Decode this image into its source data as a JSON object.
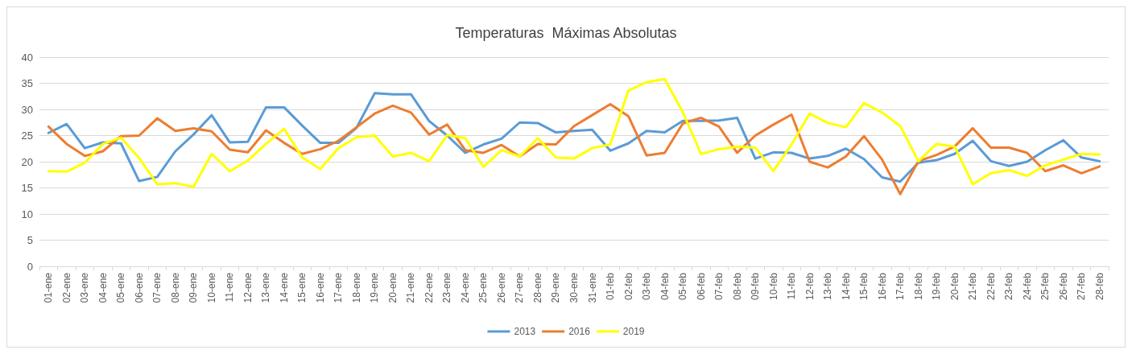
{
  "chart_data": {
    "type": "line",
    "title": "Temperaturas  Máximas Absolutas",
    "categories": [
      "01-ene",
      "02-ene",
      "03-ene",
      "04-ene",
      "05-ene",
      "06-ene",
      "07-ene",
      "08-ene",
      "09-ene",
      "10-ene",
      "11-ene",
      "12-ene",
      "13-ene",
      "14-ene",
      "15-ene",
      "16-ene",
      "17-ene",
      "18-ene",
      "19-ene",
      "20-ene",
      "21-ene",
      "22-ene",
      "23-ene",
      "24-ene",
      "25-ene",
      "26-ene",
      "27-ene",
      "28-ene",
      "29-ene",
      "30-ene",
      "31-ene",
      "01-feb",
      "02-feb",
      "03-feb",
      "04-feb",
      "05-feb",
      "06-feb",
      "07-feb",
      "08-feb",
      "09-feb",
      "10-feb",
      "11-feb",
      "12-feb",
      "13-feb",
      "14-feb",
      "15-feb",
      "16-feb",
      "17-feb",
      "18-feb",
      "19-feb",
      "20-feb",
      "21-feb",
      "22-feb",
      "23-feb",
      "24-feb",
      "25-feb",
      "26-feb",
      "27-feb",
      "28-feb"
    ],
    "series": [
      {
        "name": "2013",
        "color": "#5b9bd5",
        "values": [
          25.5,
          27.2,
          22.6,
          23.7,
          23.5,
          16.3,
          17.1,
          22.0,
          25.2,
          28.9,
          23.7,
          23.8,
          30.4,
          30.4,
          26.9,
          23.6,
          23.6,
          26.5,
          33.1,
          32.9,
          32.9,
          27.8,
          25.0,
          21.7,
          23.3,
          24.4,
          27.5,
          27.4,
          25.6,
          25.9,
          26.1,
          22.1,
          23.5,
          25.9,
          25.6,
          27.8,
          27.8,
          27.9,
          28.4,
          20.6,
          21.8,
          21.7,
          20.6,
          21.1,
          22.5,
          20.5,
          17.0,
          16.2,
          19.8,
          20.3,
          21.5,
          24.0,
          20.1,
          19.2,
          20.0,
          22.2,
          24.1,
          20.8,
          20.1
        ]
      },
      {
        "name": "2016",
        "color": "#ed7d31",
        "values": [
          26.7,
          23.4,
          21.1,
          22.0,
          24.9,
          25.0,
          28.3,
          25.9,
          26.4,
          25.8,
          22.3,
          21.8,
          26.0,
          23.6,
          21.5,
          22.4,
          24.0,
          26.6,
          29.2,
          30.7,
          29.4,
          25.2,
          27.1,
          22.2,
          21.7,
          23.2,
          21.0,
          23.4,
          23.3,
          26.8,
          28.9,
          31.0,
          28.7,
          21.2,
          21.7,
          27.3,
          28.4,
          26.7,
          21.7,
          25.0,
          27.1,
          29.0,
          20.0,
          18.9,
          21.0,
          24.9,
          20.4,
          13.8,
          20.1,
          21.3,
          22.9,
          26.4,
          22.7,
          22.7,
          21.7,
          18.2,
          19.3,
          17.8,
          19.1
        ]
      },
      {
        "name": "2019",
        "color": "#ffff00",
        "values": [
          18.2,
          18.1,
          19.8,
          23.4,
          24.6,
          20.7,
          15.7,
          15.9,
          15.2,
          21.5,
          18.2,
          20.2,
          23.4,
          26.3,
          20.8,
          18.6,
          22.6,
          24.7,
          25.0,
          21.0,
          21.7,
          20.1,
          25.1,
          24.5,
          19.0,
          22.2,
          21.0,
          24.5,
          20.8,
          20.6,
          22.6,
          23.3,
          33.6,
          35.2,
          35.8,
          29.5,
          21.5,
          22.4,
          22.9,
          22.7,
          18.2,
          23.3,
          29.2,
          27.4,
          26.6,
          31.2,
          29.4,
          26.8,
          20.1,
          23.4,
          22.9,
          15.7,
          17.8,
          18.4,
          17.3,
          19.3,
          20.4,
          21.5,
          21.4
        ]
      }
    ],
    "ylim": [
      0,
      40
    ],
    "yticks": [
      0,
      5,
      10,
      15,
      20,
      25,
      30,
      35,
      40
    ],
    "grid": "y",
    "legend": "bottom",
    "marker": "none",
    "line_style": "solid"
  }
}
